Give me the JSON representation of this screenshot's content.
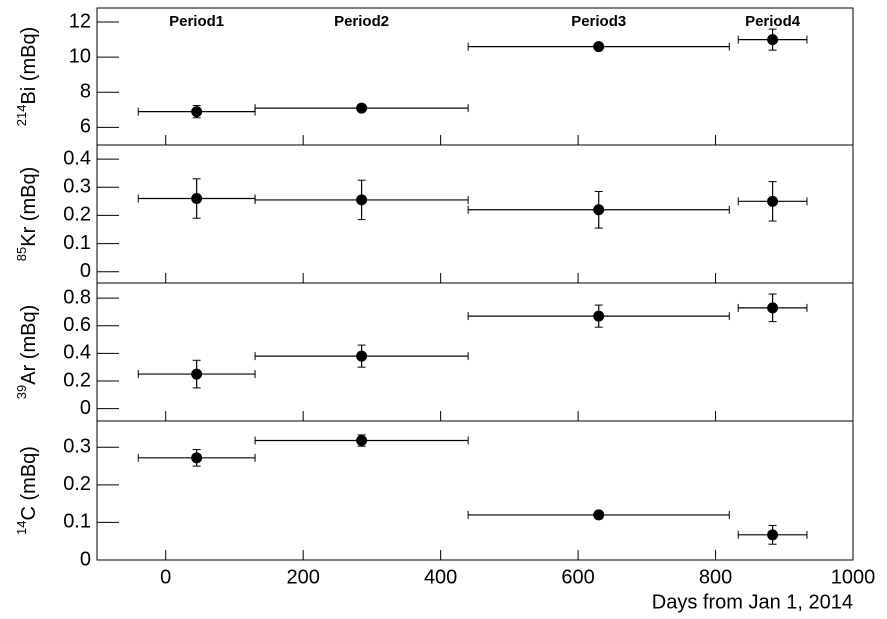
{
  "chart_data": {
    "type": "scatter",
    "xlabel": "Days from Jan 1, 2014",
    "xlim": [
      -100,
      1000
    ],
    "xticks": [
      0,
      200,
      400,
      600,
      800,
      1000
    ],
    "x": [
      45,
      285,
      630,
      883
    ],
    "xerr": [
      85,
      155,
      190,
      50
    ],
    "annotations": [
      "Period1",
      "Period2",
      "Period3",
      "Period4"
    ],
    "color": "#000000",
    "panels": [
      {
        "ylabel_sup": "214",
        "ylabel": "Bi (mBq)",
        "ylim": [
          5,
          12.8
        ],
        "yticks": [
          6,
          8,
          10,
          12
        ],
        "values": [
          6.9,
          7.1,
          10.6,
          11.0
        ],
        "yerr": [
          0.35,
          0.2,
          0.2,
          0.6
        ]
      },
      {
        "ylabel_sup": "85",
        "ylabel": "Kr (mBq)",
        "ylim": [
          -0.04,
          0.45
        ],
        "yticks": [
          0,
          0.1,
          0.2,
          0.3,
          0.4
        ],
        "values": [
          0.26,
          0.255,
          0.22,
          0.25
        ],
        "yerr": [
          0.07,
          0.07,
          0.065,
          0.07
        ]
      },
      {
        "ylabel_sup": "39",
        "ylabel": "Ar (mBq)",
        "ylim": [
          -0.09,
          0.91
        ],
        "yticks": [
          0,
          0.2,
          0.4,
          0.6,
          0.8
        ],
        "values": [
          0.25,
          0.38,
          0.67,
          0.73
        ],
        "yerr": [
          0.1,
          0.08,
          0.08,
          0.1
        ]
      },
      {
        "ylabel_sup": "14",
        "ylabel": "C (mBq)",
        "ylim": [
          0,
          0.37
        ],
        "yticks": [
          0,
          0.1,
          0.2,
          0.3
        ],
        "values": [
          0.272,
          0.318,
          0.12,
          0.067
        ],
        "yerr": [
          0.022,
          0.015,
          0.01,
          0.025
        ]
      }
    ]
  }
}
